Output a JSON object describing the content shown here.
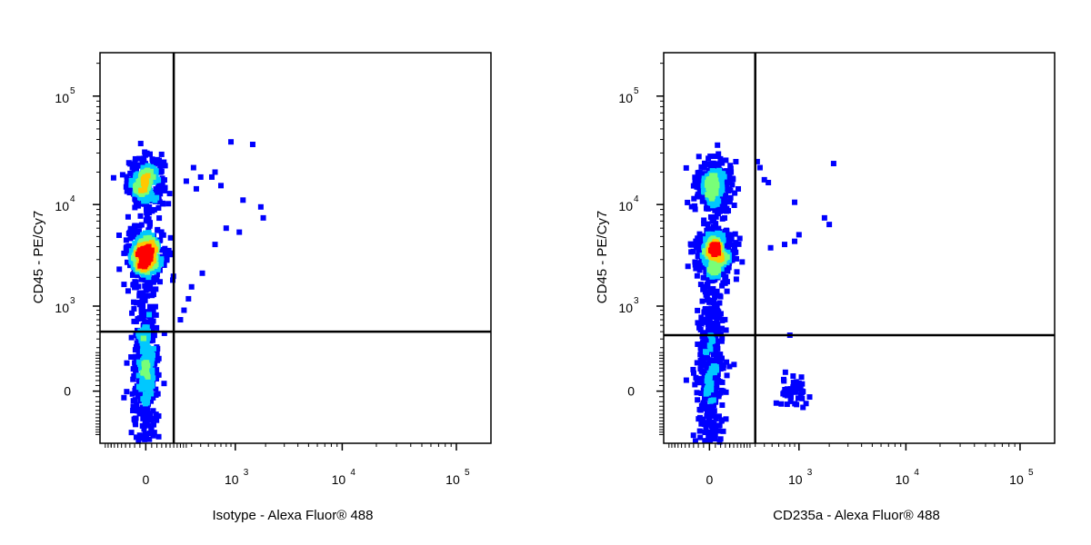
{
  "chart_data": [
    {
      "type": "scatter",
      "subtype": "flow-cytometry-density-dot-plot",
      "xlabel": "Isotype - Alexa Fluor® 488",
      "ylabel": "CD45 - PE/Cy7",
      "x_scale": "biexponential",
      "y_scale": "biexponential",
      "x_ticks": [
        {
          "value": 0,
          "base": "0",
          "exp": ""
        },
        {
          "value": 1000,
          "base": "10",
          "exp": "3"
        },
        {
          "value": 10000,
          "base": "10",
          "exp": "4"
        },
        {
          "value": 100000,
          "base": "10",
          "exp": "5"
        }
      ],
      "y_ticks": [
        {
          "value": 0,
          "base": "0",
          "exp": ""
        },
        {
          "value": 1000,
          "base": "10",
          "exp": "3"
        },
        {
          "value": 10000,
          "base": "10",
          "exp": "4"
        },
        {
          "value": 100000,
          "base": "10",
          "exp": "5"
        }
      ],
      "quadrant_gates": {
        "x": 150,
        "y": 500
      },
      "clusters": [
        {
          "x": 0,
          "y": 16000,
          "count": 280,
          "density": "high"
        },
        {
          "x": 0,
          "y": 3500,
          "count": 380,
          "density": "high"
        },
        {
          "x": 0,
          "y": 25,
          "count": 300,
          "density": "medium"
        }
      ],
      "scatter_points": [
        [
          320,
          22000
        ],
        [
          400,
          18000
        ],
        [
          600,
          20000
        ],
        [
          900,
          38000
        ],
        [
          1500,
          36000
        ],
        [
          700,
          15000
        ],
        [
          1200,
          11000
        ],
        [
          1800,
          9500
        ],
        [
          1900,
          7500
        ],
        [
          1100,
          5500
        ],
        [
          800,
          6000
        ],
        [
          600,
          4200
        ],
        [
          420,
          2200
        ],
        [
          300,
          1600
        ],
        [
          270,
          1200
        ],
        [
          230,
          900
        ],
        [
          200,
          700
        ],
        [
          350,
          14000
        ],
        [
          250,
          16500
        ],
        [
          550,
          18000
        ]
      ],
      "colors": {
        "low": "#0000ff",
        "mid_low": "#00c8ff",
        "mid": "#78ff78",
        "mid_high": "#ffc800",
        "high": "#ff0000"
      }
    },
    {
      "type": "scatter",
      "subtype": "flow-cytometry-density-dot-plot",
      "xlabel": "CD235a - Alexa Fluor® 488",
      "ylabel": "CD45 - PE/Cy7",
      "x_scale": "biexponential",
      "y_scale": "biexponential",
      "x_ticks": [
        {
          "value": 0,
          "base": "0",
          "exp": ""
        },
        {
          "value": 1000,
          "base": "10",
          "exp": "3"
        },
        {
          "value": 10000,
          "base": "10",
          "exp": "4"
        },
        {
          "value": 100000,
          "base": "10",
          "exp": "5"
        }
      ],
      "y_ticks": [
        {
          "value": 0,
          "base": "0",
          "exp": ""
        },
        {
          "value": 1000,
          "base": "10",
          "exp": "3"
        },
        {
          "value": 10000,
          "base": "10",
          "exp": "4"
        },
        {
          "value": 100000,
          "base": "10",
          "exp": "5"
        }
      ],
      "quadrant_gates": {
        "x": 300,
        "y": 450
      },
      "clusters": [
        {
          "x": 20,
          "y": 15000,
          "count": 300,
          "density": "high"
        },
        {
          "x": 20,
          "y": 3500,
          "count": 400,
          "density": "high"
        },
        {
          "x": 0,
          "y": 25,
          "count": 300,
          "density": "medium"
        },
        {
          "x": 900,
          "y": 5,
          "count": 45,
          "density": "low"
        }
      ],
      "scatter_points": [
        [
          350,
          22000
        ],
        [
          400,
          17000
        ],
        [
          900,
          10500
        ],
        [
          1800,
          7500
        ],
        [
          2000,
          6500
        ],
        [
          900,
          4500
        ],
        [
          700,
          4200
        ],
        [
          480,
          3900
        ],
        [
          2200,
          24000
        ],
        [
          1000,
          5200
        ],
        [
          800,
          450
        ],
        [
          450,
          16000
        ],
        [
          320,
          25000
        ]
      ],
      "colors": {
        "low": "#0000ff",
        "mid_low": "#00c8ff",
        "mid": "#78ff78",
        "mid_high": "#ffc800",
        "high": "#ff0000"
      }
    }
  ]
}
